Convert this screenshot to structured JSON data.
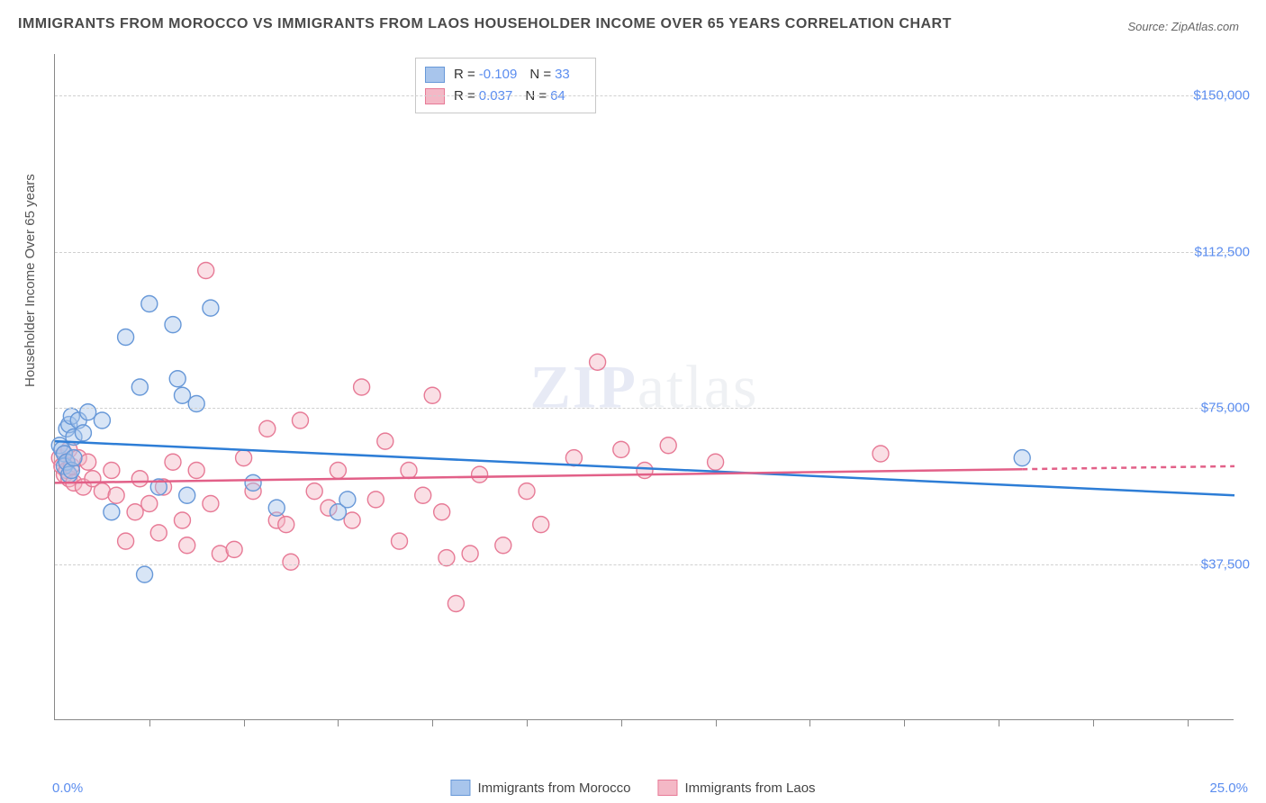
{
  "title": "IMMIGRANTS FROM MOROCCO VS IMMIGRANTS FROM LAOS HOUSEHOLDER INCOME OVER 65 YEARS CORRELATION CHART",
  "source": "Source: ZipAtlas.com",
  "watermark": "ZIPatlas",
  "ylabel": "Householder Income Over 65 years",
  "chart": {
    "type": "scatter",
    "xlim": [
      0,
      25
    ],
    "ylim": [
      0,
      160000
    ],
    "x_tick_label_left": "0.0%",
    "x_tick_label_right": "25.0%",
    "x_major_ticks": [
      0,
      5,
      10,
      15,
      20,
      25
    ],
    "x_minor_ticks": [
      2,
      4,
      6,
      8,
      10,
      12,
      14,
      16,
      18,
      20,
      22,
      24
    ],
    "y_gridlines": [
      37500,
      75000,
      112500,
      150000
    ],
    "y_tick_labels": [
      "$37,500",
      "$75,000",
      "$112,500",
      "$150,000"
    ],
    "background_color": "#ffffff",
    "grid_color": "#d0d0d0",
    "axis_color": "#888888",
    "label_color": "#5b8def",
    "marker_radius": 9,
    "marker_opacity": 0.45,
    "line_width": 2.5
  },
  "series": [
    {
      "name": "Immigrants from Morocco",
      "color_fill": "#a8c5ec",
      "color_stroke": "#6798d8",
      "line_color": "#2d7dd6",
      "R": "-0.109",
      "N": "33",
      "points": [
        [
          0.1,
          66000
        ],
        [
          0.15,
          65000
        ],
        [
          0.2,
          64000
        ],
        [
          0.2,
          61000
        ],
        [
          0.25,
          70000
        ],
        [
          0.25,
          62000
        ],
        [
          0.3,
          71000
        ],
        [
          0.3,
          59000
        ],
        [
          0.35,
          73000
        ],
        [
          0.35,
          60000
        ],
        [
          0.4,
          68000
        ],
        [
          0.4,
          63000
        ],
        [
          0.5,
          72000
        ],
        [
          0.6,
          69000
        ],
        [
          0.7,
          74000
        ],
        [
          1.0,
          72000
        ],
        [
          1.2,
          50000
        ],
        [
          1.5,
          92000
        ],
        [
          1.8,
          80000
        ],
        [
          1.9,
          35000
        ],
        [
          2.0,
          100000
        ],
        [
          2.2,
          56000
        ],
        [
          2.5,
          95000
        ],
        [
          2.6,
          82000
        ],
        [
          2.7,
          78000
        ],
        [
          2.8,
          54000
        ],
        [
          3.0,
          76000
        ],
        [
          3.3,
          99000
        ],
        [
          4.2,
          57000
        ],
        [
          4.7,
          51000
        ],
        [
          6.0,
          50000
        ],
        [
          6.2,
          53000
        ],
        [
          20.5,
          63000
        ]
      ],
      "trend": {
        "y_start": 67000,
        "y_end": 54000,
        "dashed_after_x": null
      }
    },
    {
      "name": "Immigrants from Laos",
      "color_fill": "#f4b8c6",
      "color_stroke": "#e77a96",
      "line_color": "#e26088",
      "R": "0.037",
      "N": "64",
      "points": [
        [
          0.1,
          63000
        ],
        [
          0.15,
          61000
        ],
        [
          0.2,
          59000
        ],
        [
          0.2,
          64000
        ],
        [
          0.25,
          62000
        ],
        [
          0.25,
          60000
        ],
        [
          0.3,
          58000
        ],
        [
          0.3,
          65000
        ],
        [
          0.35,
          61000
        ],
        [
          0.4,
          57000
        ],
        [
          0.5,
          63000
        ],
        [
          0.6,
          56000
        ],
        [
          0.7,
          62000
        ],
        [
          0.8,
          58000
        ],
        [
          1.0,
          55000
        ],
        [
          1.2,
          60000
        ],
        [
          1.3,
          54000
        ],
        [
          1.5,
          43000
        ],
        [
          1.7,
          50000
        ],
        [
          1.8,
          58000
        ],
        [
          2.0,
          52000
        ],
        [
          2.2,
          45000
        ],
        [
          2.3,
          56000
        ],
        [
          2.5,
          62000
        ],
        [
          2.7,
          48000
        ],
        [
          2.8,
          42000
        ],
        [
          3.0,
          60000
        ],
        [
          3.2,
          108000
        ],
        [
          3.3,
          52000
        ],
        [
          3.5,
          40000
        ],
        [
          3.8,
          41000
        ],
        [
          4.0,
          63000
        ],
        [
          4.2,
          55000
        ],
        [
          4.5,
          70000
        ],
        [
          4.7,
          48000
        ],
        [
          5.0,
          38000
        ],
        [
          5.2,
          72000
        ],
        [
          5.5,
          55000
        ],
        [
          5.8,
          51000
        ],
        [
          6.0,
          60000
        ],
        [
          6.3,
          48000
        ],
        [
          6.5,
          80000
        ],
        [
          6.8,
          53000
        ],
        [
          7.0,
          67000
        ],
        [
          7.3,
          43000
        ],
        [
          7.5,
          60000
        ],
        [
          7.8,
          54000
        ],
        [
          8.0,
          78000
        ],
        [
          8.2,
          50000
        ],
        [
          8.5,
          28000
        ],
        [
          8.8,
          40000
        ],
        [
          9.0,
          59000
        ],
        [
          9.5,
          42000
        ],
        [
          10.0,
          55000
        ],
        [
          10.3,
          47000
        ],
        [
          11.0,
          63000
        ],
        [
          11.5,
          86000
        ],
        [
          12.0,
          65000
        ],
        [
          12.5,
          60000
        ],
        [
          13.0,
          66000
        ],
        [
          14.0,
          62000
        ],
        [
          17.5,
          64000
        ],
        [
          8.3,
          39000
        ],
        [
          4.9,
          47000
        ]
      ],
      "trend": {
        "y_start": 57000,
        "y_end": 61000,
        "dashed_after_x": 20.5
      }
    }
  ],
  "bottom_legend": [
    {
      "label": "Immigrants from Morocco",
      "fill": "#a8c5ec",
      "stroke": "#6798d8"
    },
    {
      "label": "Immigrants from Laos",
      "fill": "#f4b8c6",
      "stroke": "#e77a96"
    }
  ]
}
